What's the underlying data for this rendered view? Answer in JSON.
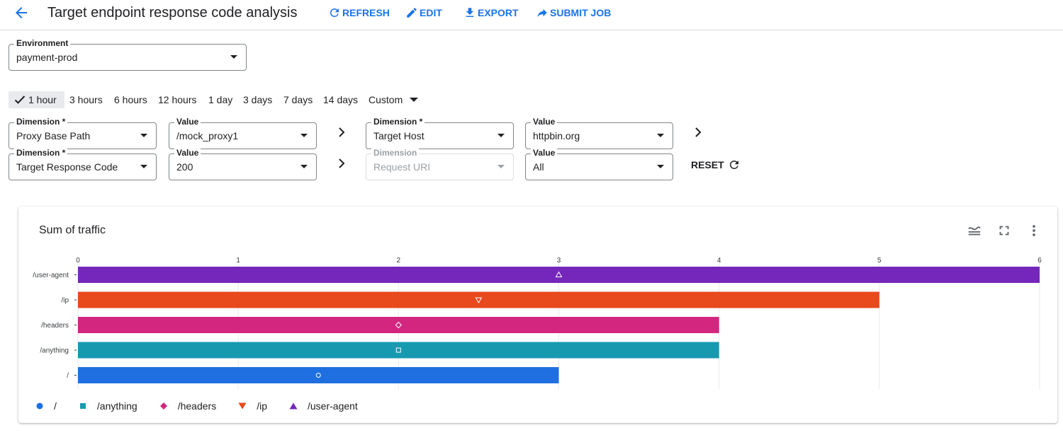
{
  "header": {
    "title": "Target endpoint response code analysis",
    "actions": [
      {
        "label": "REFRESH",
        "icon": "refresh-icon"
      },
      {
        "label": "EDIT",
        "icon": "pencil-icon"
      },
      {
        "label": "EXPORT",
        "icon": "download-icon"
      },
      {
        "label": "SUBMIT JOB",
        "icon": "share-arrow-icon"
      }
    ]
  },
  "environment": {
    "label": "Environment",
    "value": "payment-prod"
  },
  "time_range": {
    "options": [
      "1 hour",
      "3 hours",
      "6 hours",
      "12 hours",
      "1 day",
      "3 days",
      "7 days",
      "14 days",
      "Custom"
    ],
    "selected": "1 hour"
  },
  "filters": {
    "row1": {
      "dim1": {
        "label": "Dimension *",
        "value": "Proxy Base Path"
      },
      "val1": {
        "label": "Value",
        "value": "/mock_proxy1"
      },
      "dim2": {
        "label": "Dimension *",
        "value": "Target Host"
      },
      "val2": {
        "label": "Value",
        "value": "httpbin.org"
      }
    },
    "row2": {
      "dim1": {
        "label": "Dimension *",
        "value": "Target Response Code"
      },
      "val1": {
        "label": "Value",
        "value": "200"
      },
      "dim2": {
        "label": "Dimension",
        "value": "Request URI"
      },
      "val2": {
        "label": "Value",
        "value": "All"
      }
    },
    "reset_label": "RESET"
  },
  "colors": {
    "accent": "#1a73e8",
    "user_agent": "#7627bb",
    "ip": "#e8491d",
    "headers": "#d2267f",
    "anything": "#179ab0",
    "root": "#1f6fe0"
  },
  "chart_data": {
    "type": "bar",
    "orientation": "horizontal",
    "title": "Sum of traffic",
    "xlim": [
      0,
      6
    ],
    "ticks": [
      0,
      1,
      2,
      3,
      4,
      5,
      6
    ],
    "categories": [
      "/user-agent",
      "/ip",
      "/headers",
      "/anything",
      "/"
    ],
    "values": [
      6,
      5,
      4,
      4,
      3
    ],
    "colors": [
      "#7627bb",
      "#e8491d",
      "#d2267f",
      "#179ab0",
      "#1f6fe0"
    ],
    "markers": [
      "triangle-up",
      "triangle-down",
      "diamond",
      "square",
      "circle"
    ],
    "grid": true,
    "legend": {
      "placement": "bottom-left",
      "entries": [
        {
          "name": "/",
          "marker": "circle",
          "color": "#1f6fe0"
        },
        {
          "name": "/anything",
          "marker": "square",
          "color": "#179ab0"
        },
        {
          "name": "/headers",
          "marker": "diamond",
          "color": "#d2267f"
        },
        {
          "name": "/ip",
          "marker": "triangle-down",
          "color": "#e8491d"
        },
        {
          "name": "/user-agent",
          "marker": "triangle-up",
          "color": "#7627bb"
        }
      ]
    }
  }
}
